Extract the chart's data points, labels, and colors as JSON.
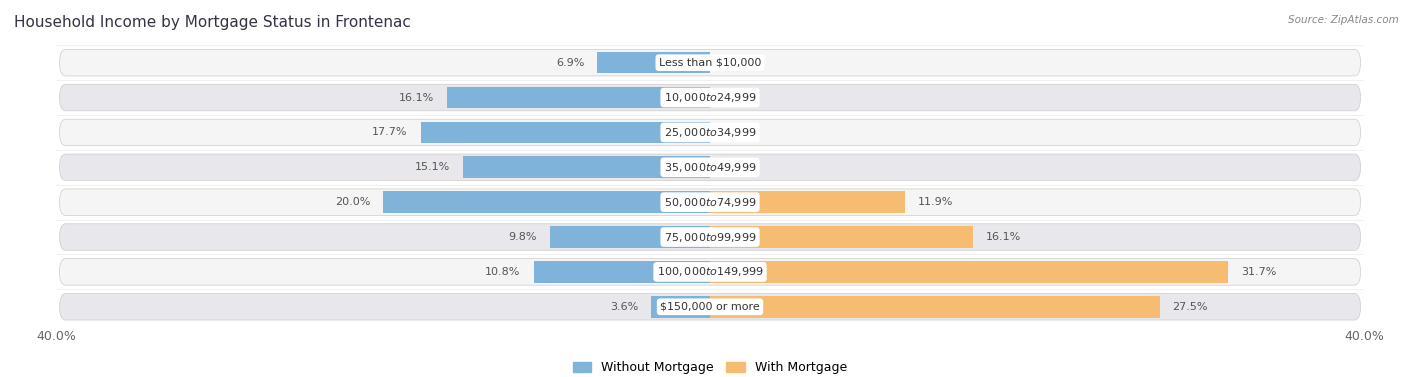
{
  "title": "Household Income by Mortgage Status in Frontenac",
  "source": "Source: ZipAtlas.com",
  "categories": [
    "Less than $10,000",
    "$10,000 to $24,999",
    "$25,000 to $34,999",
    "$35,000 to $49,999",
    "$50,000 to $74,999",
    "$75,000 to $99,999",
    "$100,000 to $149,999",
    "$150,000 or more"
  ],
  "without_mortgage": [
    6.9,
    16.1,
    17.7,
    15.1,
    20.0,
    9.8,
    10.8,
    3.6
  ],
  "with_mortgage": [
    0.0,
    0.0,
    0.0,
    0.0,
    11.9,
    16.1,
    31.7,
    27.5
  ],
  "color_without": "#7fb3d9",
  "color_with": "#f5bc72",
  "xlim": 40.0,
  "row_bg_light": "#f5f5f5",
  "row_bg_dark": "#e8e8ec",
  "title_fontsize": 11,
  "value_fontsize": 8,
  "cat_fontsize": 8,
  "axis_fontsize": 9
}
